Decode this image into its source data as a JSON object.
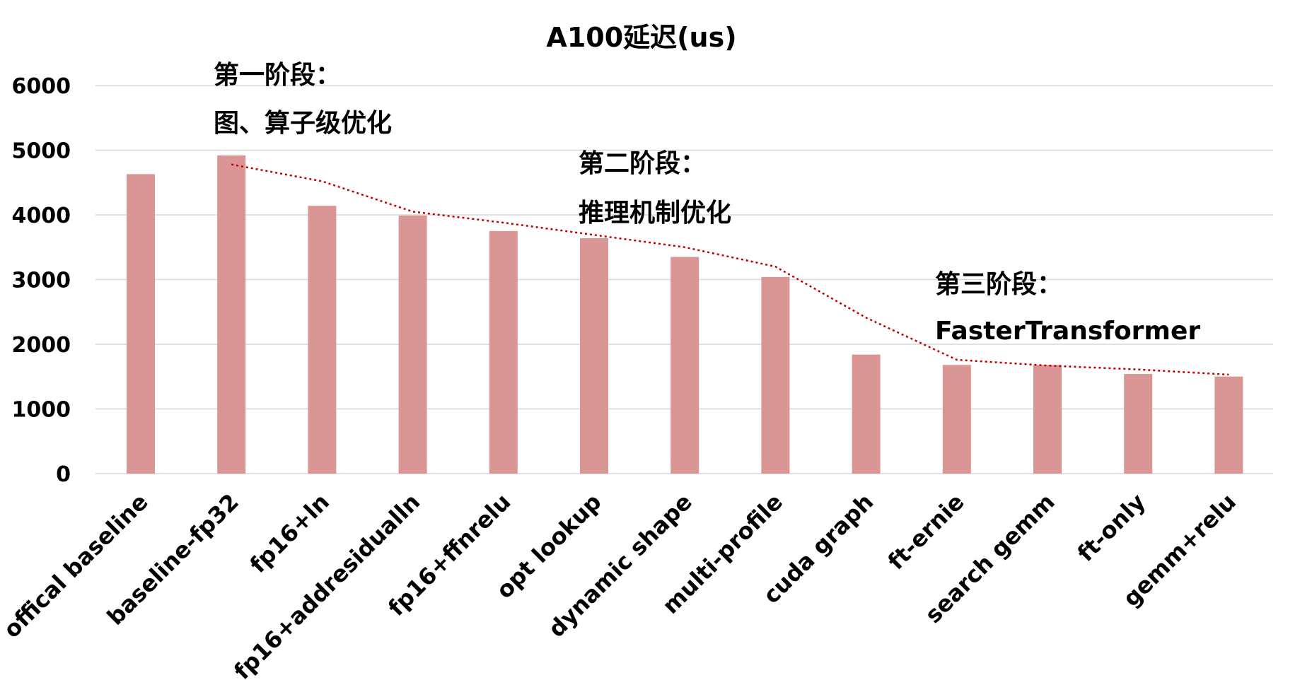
{
  "chart_data": {
    "type": "bar",
    "title": "A100延迟(us)",
    "xlabel": "",
    "ylabel": "",
    "ylim": [
      0,
      6000
    ],
    "yticks": [
      0,
      1000,
      2000,
      3000,
      4000,
      5000,
      6000
    ],
    "grid": true,
    "legend": "none",
    "categories": [
      "offical baseline",
      "baseline-fp32",
      "fp16+ln",
      "fp16+addresidualln",
      "fp16+ffnrelu",
      "opt lookup",
      "dynamic shape",
      "multi-profile",
      "cuda graph",
      "ft-ernie",
      "search gemm",
      "ft-only",
      "gemm+relu"
    ],
    "values": [
      4630,
      4920,
      4140,
      3990,
      3750,
      3640,
      3350,
      3040,
      1840,
      1680,
      1680,
      1540,
      1500
    ],
    "trendline": {
      "style": "dotted",
      "color": "#c00000",
      "values": [
        null,
        4780,
        4520,
        4050,
        3880,
        3690,
        3500,
        3200,
        2410,
        1760,
        1670,
        1610,
        1530
      ]
    },
    "bar_color": "#d99694",
    "annotations": [
      {
        "lines": [
          "第一阶段：",
          "图、算子级优化"
        ]
      },
      {
        "lines": [
          "第二阶段：",
          "推理机制优化"
        ]
      },
      {
        "lines": [
          "第三阶段：",
          "FasterTransformer"
        ]
      }
    ]
  }
}
